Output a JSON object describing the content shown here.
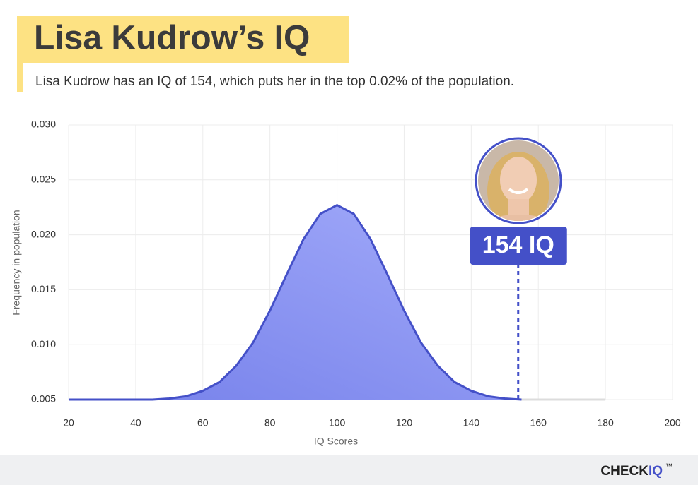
{
  "chart_data": {
    "type": "area",
    "title": "Lisa Kudrow’s IQ",
    "subtitle": "Lisa Kudrow has an IQ of 154, which puts her in the top 0.02% of the population.",
    "x_label": "IQ Scores",
    "y_label": "Frequency in population",
    "x": [
      20,
      25,
      30,
      35,
      40,
      45,
      50,
      55,
      60,
      65,
      70,
      75,
      80,
      85,
      90,
      95,
      100,
      105,
      110,
      115,
      120,
      125,
      130,
      135,
      140,
      145,
      150,
      155,
      160,
      165,
      170,
      175,
      180
    ],
    "series": [
      {
        "color": "#4450c8",
        "values": [
          0.005,
          0.005,
          0.005,
          0.005,
          0.005,
          0.005,
          0.0051,
          0.0053,
          0.0058,
          0.0066,
          0.0081,
          0.0102,
          0.0131,
          0.0164,
          0.0196,
          0.0219,
          0.0227,
          0.0219,
          0.0196,
          0.0164,
          0.0131,
          0.0102,
          0.0081,
          0.0066,
          0.0058,
          0.0053,
          0.0051,
          0.005,
          null,
          null,
          null,
          null,
          null
        ]
      },
      {
        "color": "#dcdcdc",
        "values": [
          null,
          null,
          null,
          null,
          null,
          null,
          null,
          null,
          null,
          null,
          null,
          null,
          null,
          null,
          null,
          null,
          null,
          null,
          null,
          null,
          null,
          null,
          null,
          null,
          null,
          null,
          null,
          0.005,
          0.005,
          0.005,
          0.005,
          0.005,
          0.005
        ]
      }
    ],
    "xlim": [
      20,
      200
    ],
    "ylim": [
      0.005,
      0.03
    ],
    "xticks": [
      20,
      40,
      60,
      80,
      100,
      120,
      140,
      160,
      180,
      200
    ],
    "yticks": [
      {
        "value": 0.005,
        "label": "0.005"
      },
      {
        "value": 0.01,
        "label": "0.010"
      },
      0.015,
      {
        "value": 0.02,
        "label": "0.020"
      },
      0.025,
      {
        "value": 0.03,
        "label": "0.030"
      }
    ],
    "grid": true,
    "annotations": [
      {
        "x": 154,
        "label": "154 IQ",
        "color": "#4450c8"
      }
    ]
  },
  "brand": {
    "name": "CHECK",
    "accent": "IQ",
    "mark": "™"
  }
}
